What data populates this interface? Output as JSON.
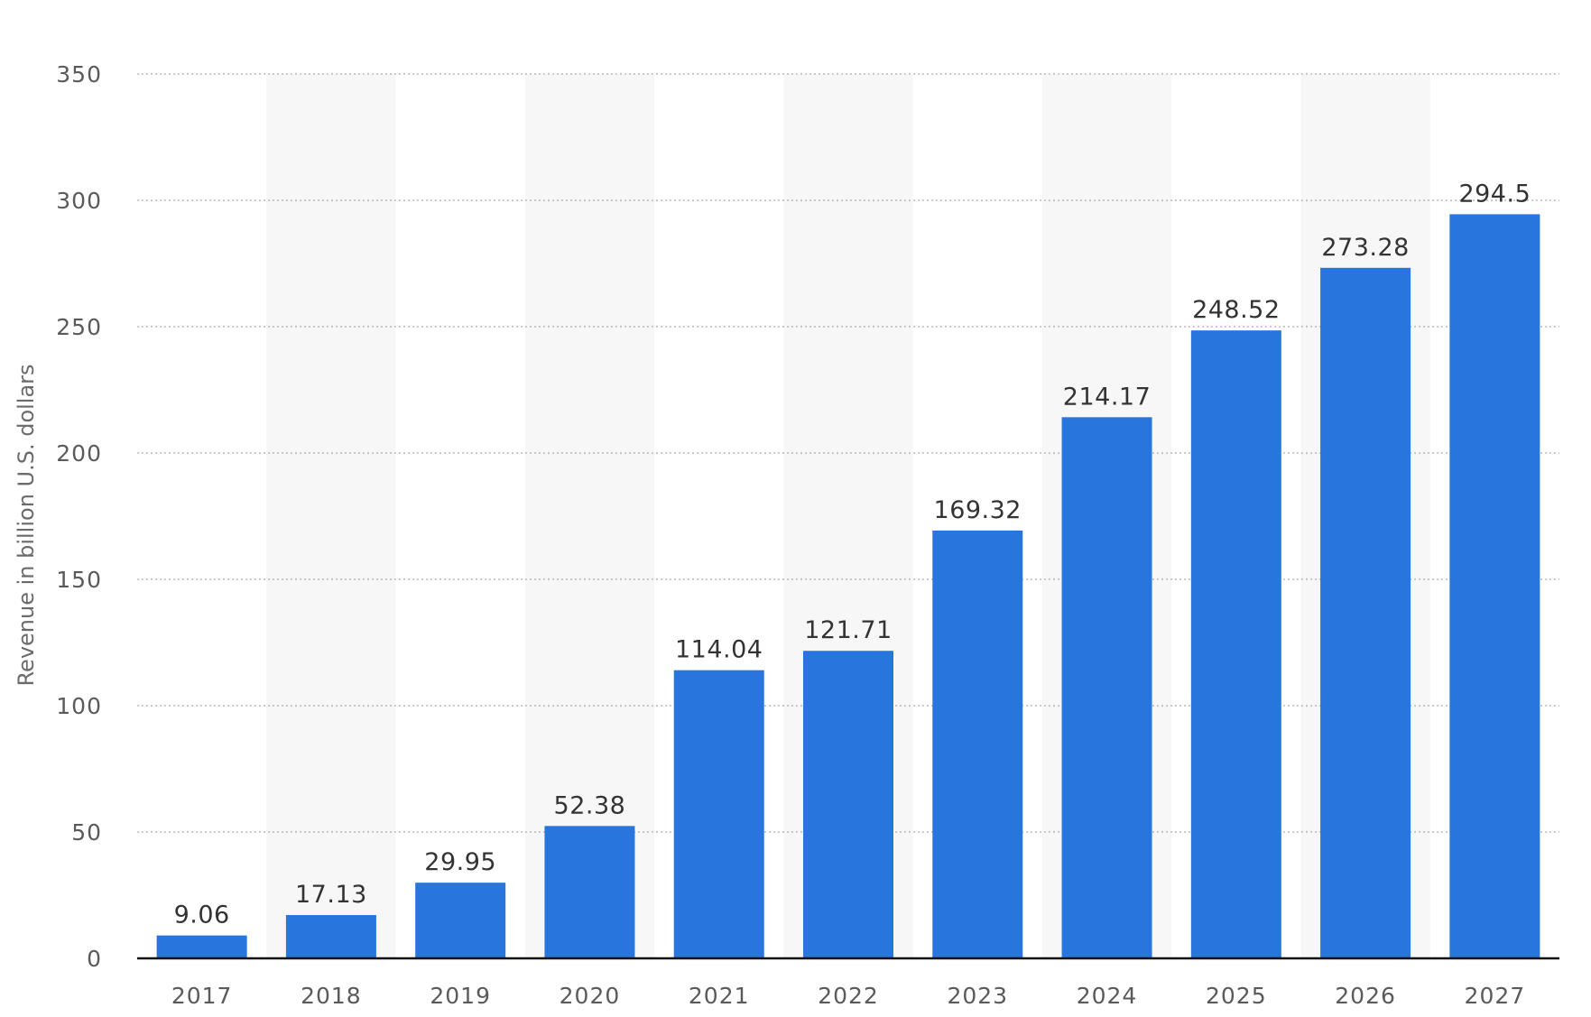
{
  "chart_data": {
    "type": "bar",
    "categories": [
      "2017",
      "2018",
      "2019",
      "2020",
      "2021",
      "2022",
      "2023",
      "2024",
      "2025",
      "2026",
      "2027"
    ],
    "values": [
      9.06,
      17.13,
      29.95,
      52.38,
      114.04,
      121.71,
      169.32,
      214.17,
      248.52,
      273.28,
      294.5
    ],
    "value_labels": [
      "9.06",
      "17.13",
      "29.95",
      "52.38",
      "114.04",
      "121.71",
      "169.32",
      "214.17",
      "248.52",
      "273.28",
      "294.5"
    ],
    "title": "",
    "xlabel": "",
    "ylabel": "Revenue in billion U.S. dollars",
    "ylim": [
      0,
      350
    ],
    "yticks": [
      "0",
      "50",
      "100",
      "150",
      "200",
      "250",
      "300",
      "350"
    ],
    "grid": true,
    "alternating_column_shading": true,
    "legend": "none",
    "colors": {
      "bar": "#2876dd",
      "band": "#f7f7f7",
      "grid": "#b9b9b9",
      "axis": "#111111"
    }
  }
}
